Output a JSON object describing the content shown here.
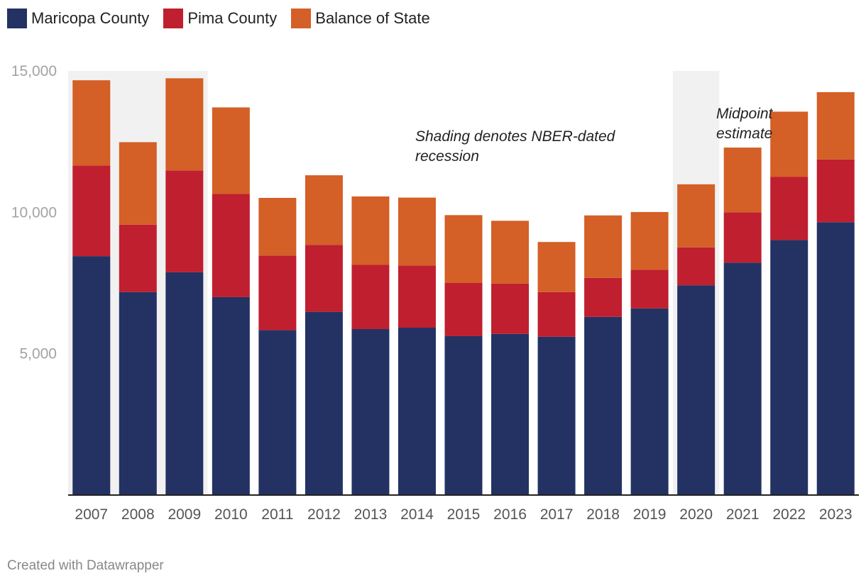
{
  "chart_data": {
    "type": "bar",
    "stacked": true,
    "categories": [
      "2007",
      "2008",
      "2009",
      "2010",
      "2011",
      "2012",
      "2013",
      "2014",
      "2015",
      "2016",
      "2017",
      "2018",
      "2019",
      "2020",
      "2021",
      "2022",
      "2023"
    ],
    "series": [
      {
        "name": "Maricopa County",
        "color": "#233263",
        "values": [
          8450,
          7180,
          7880,
          7000,
          5830,
          6480,
          5870,
          5920,
          5620,
          5700,
          5600,
          6300,
          6600,
          7420,
          8220,
          9020,
          9650
        ]
      },
      {
        "name": "Pima County",
        "color": "#bf1f2f",
        "values": [
          3200,
          2380,
          3600,
          3650,
          2640,
          2370,
          2270,
          2200,
          1880,
          1780,
          1580,
          1380,
          1370,
          1340,
          1780,
          2230,
          2220
        ]
      },
      {
        "name": "Balance of State",
        "color": "#d45f27",
        "values": [
          3020,
          2920,
          3260,
          3060,
          2040,
          2460,
          2420,
          2400,
          2400,
          2220,
          1770,
          2210,
          2040,
          2230,
          2290,
          2310,
          2380
        ]
      }
    ],
    "ylim": [
      0,
      15000
    ],
    "yticks": [
      {
        "value": 5000,
        "label": "5,000"
      },
      {
        "value": 10000,
        "label": "10,000"
      },
      {
        "value": 15000,
        "label": "15,000"
      }
    ],
    "recession_shading": [
      {
        "from": "2007",
        "to": "2009"
      },
      {
        "from": "2020",
        "to": "2020"
      }
    ],
    "annotations": [
      {
        "text": "Shading denotes NBER-dated recession",
        "lines": [
          "Shading denotes NBER-dated",
          "recession"
        ],
        "anchor_year": "2014"
      },
      {
        "text": "Midpoint estimate",
        "lines": [
          "Midpoint",
          "estimate"
        ],
        "anchor_year": "2021"
      }
    ],
    "legend_position": "top-left",
    "grid": false
  },
  "footer": {
    "credit": "Created with Datawrapper"
  }
}
